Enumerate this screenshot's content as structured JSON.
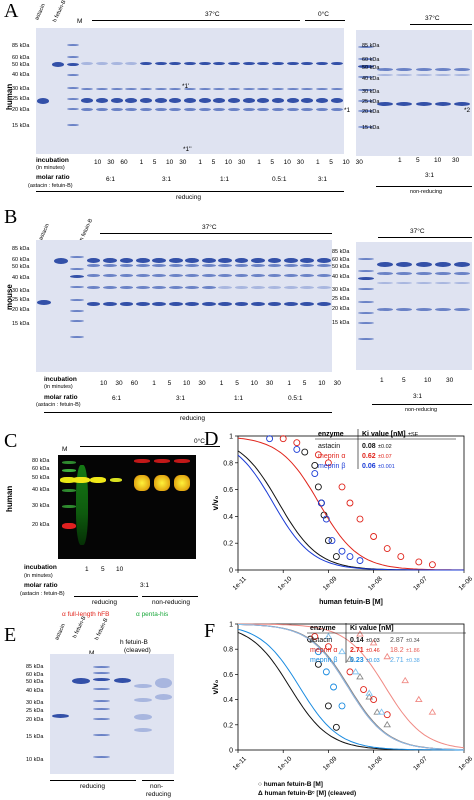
{
  "panels": {
    "A": "A",
    "B": "B",
    "C": "C",
    "D": "D",
    "E": "E",
    "F": "F"
  },
  "species": {
    "human": "human",
    "mouse": "mouse",
    "human_c": "human"
  },
  "lanes": {
    "astacin": "astacin",
    "h_fetuin": "h fetuin-B",
    "m_fetuin": "m fetuin-B",
    "M": "M",
    "h_fetuin_cleaved": "h fetuin-B",
    "cleaved": "(cleaved)"
  },
  "temps": {
    "t37": "37°C",
    "t0": "0°C"
  },
  "markers": {
    "a_left": [
      "85 kDa",
      "60 kDa",
      "50 kDa",
      "40 kDa",
      "30 kDa",
      "25 kDa",
      "20 kDa",
      "15 kDa"
    ],
    "a_right": [
      "85 kDa",
      "60 kDa",
      "50 kDa",
      "40 kDa",
      "30 kDa",
      "25 kDa",
      "20 kDa",
      "15 kDa"
    ],
    "b_left": [
      "85 kDa",
      "60 kDa",
      "50 kDa",
      "40 kDa",
      "30 kDa",
      "25 kDa",
      "20 kDa",
      "15 kDa"
    ],
    "b_right": [
      "85 kDa",
      "60 kDa",
      "50 kDa",
      "40 kDa",
      "30 kDa",
      "25 kDa",
      "20 kDa",
      "15 kDa"
    ],
    "c": [
      "80 kDa",
      "60 kDa",
      "50 kDa",
      "40 kDa",
      "30 kDa",
      "20 kDa"
    ],
    "e": [
      "85 kDa",
      "60 kDa",
      "50 kDa",
      "40 kDa",
      "30 kDa",
      "25 kDa",
      "20 kDa",
      "15 kDa",
      "10 kDa"
    ]
  },
  "cleavage_marks": [
    "*1",
    "*1'",
    "*2",
    "*1''"
  ],
  "incubation": {
    "label": "incubation",
    "sub": "(in minutes)",
    "a_main": [
      "10",
      "30",
      "60",
      "1",
      "5",
      "10",
      "30",
      "1",
      "5",
      "10",
      "30",
      "1",
      "5",
      "10",
      "30",
      "1",
      "5",
      "10",
      "30"
    ],
    "a_right": [
      "1",
      "5",
      "10",
      "30"
    ],
    "b_main": [
      "10",
      "30",
      "60",
      "1",
      "5",
      "10",
      "30",
      "1",
      "5",
      "10",
      "30",
      "1",
      "5",
      "10",
      "30"
    ],
    "b_right": [
      "1",
      "5",
      "10",
      "30"
    ],
    "c": [
      "1",
      "5",
      "10"
    ]
  },
  "molar_ratio": {
    "label": "molar ratio",
    "sub": "(astacin : fetuin-B)",
    "a": [
      "6:1",
      "3:1",
      "1:1",
      "0.5:1",
      "3:1"
    ],
    "a_right": "3:1",
    "b": [
      "6:1",
      "3:1",
      "1:1",
      "0.5:1"
    ],
    "b_right": "3:1",
    "c": "3:1"
  },
  "conditions": {
    "reducing": "reducing",
    "non_reducing": "non-reducing",
    "non": "non-",
    "reducing2": "reducing"
  },
  "legend_c": {
    "alpha_hfb": "α full-length hFB",
    "alpha_his": "α penta-his",
    "red": "#e0251c",
    "green": "#19a83a"
  },
  "chart_data": [
    {
      "type": "scatter",
      "title": "",
      "xlabel": "human fetuin-B [M]",
      "ylabel": "v/v₀",
      "xscale": "log",
      "xlim": [
        1e-11,
        1e-06
      ],
      "ylim": [
        0,
        1
      ],
      "xticks": [
        "1e-11",
        "1e-10",
        "1e-09",
        "1e-08",
        "1e-07",
        "1e-06"
      ],
      "yticks": [
        "0",
        "0.2",
        "0.4",
        "0.6",
        "0.8",
        "1"
      ],
      "grid": false,
      "table": {
        "headers": [
          "enzyme",
          "Ki value [nM]",
          "±SE"
        ],
        "rows": [
          {
            "name": "astacin",
            "value": "0.08",
            "se": "±0.02",
            "color": "#111111"
          },
          {
            "name": "meprin α",
            "value": "0.62",
            "se": "±0.07",
            "color": "#e0251c"
          },
          {
            "name": "meprin β",
            "value": "0.06",
            "se": "±0.001",
            "color": "#1a3bd6"
          }
        ]
      },
      "series": [
        {
          "name": "astacin",
          "color": "#111111",
          "ki": 8e-11,
          "x": [
            3e-10,
            5e-10,
            6e-10,
            7e-10,
            8e-10,
            1e-09,
            1.5e-09
          ],
          "y": [
            0.88,
            0.78,
            0.62,
            0.5,
            0.41,
            0.22,
            0.1
          ]
        },
        {
          "name": "meprin α",
          "color": "#e0251c",
          "ki": 6.2e-10,
          "x": [
            1e-10,
            2e-10,
            6e-10,
            1e-09,
            2e-09,
            3e-09,
            5e-09,
            1e-08,
            2e-08,
            4e-08,
            1e-07,
            2e-07
          ],
          "y": [
            0.98,
            0.95,
            0.86,
            0.8,
            0.62,
            0.5,
            0.38,
            0.25,
            0.16,
            0.1,
            0.06,
            0.04
          ]
        },
        {
          "name": "meprin β",
          "color": "#1a3bd6",
          "ki": 6e-11,
          "x": [
            5e-11,
            2e-10,
            5e-10,
            7e-10,
            9e-10,
            1.2e-09,
            2e-09,
            3e-09,
            5e-09
          ],
          "y": [
            0.98,
            0.9,
            0.72,
            0.5,
            0.38,
            0.22,
            0.14,
            0.1,
            0.07
          ]
        }
      ]
    },
    {
      "type": "scatter",
      "title": "",
      "xlabel": "",
      "ylabel": "v/v₀",
      "xscale": "log",
      "xlim": [
        1e-11,
        1e-06
      ],
      "ylim": [
        0,
        1
      ],
      "xticks": [
        "1e-11",
        "1e-10",
        "1e-09",
        "1e-08",
        "1e-07",
        "1e-06"
      ],
      "yticks": [
        "0",
        "0.2",
        "0.4",
        "0.6",
        "0.8",
        "1"
      ],
      "grid": false,
      "legend_lines": [
        "○ human fetuin-B [M]",
        "Δ human fetuin-Bᶜ [M] (cleaved)"
      ],
      "table": {
        "headers": [
          "enzyme",
          "Ki value [nM]"
        ],
        "rows": [
          {
            "name": "astacin",
            "value": "0.14",
            "se": "±0.03",
            "value2": "2.87",
            "se2": "±0.34",
            "color": "#111111"
          },
          {
            "name": "meprin α",
            "value": "2.71",
            "se": "±0.46",
            "value2": "18.2",
            "se2": "±1.86",
            "color": "#e0251c"
          },
          {
            "name": "meprin β",
            "value": "0.23",
            "se": "±0.03",
            "value2": "2.71",
            "se2": "±0.38",
            "color": "#1a8be0"
          }
        ]
      },
      "series": [
        {
          "name": "astacin",
          "marker": "circle",
          "color": "#111111",
          "ki": 1.4e-10,
          "x": [
            4e-10,
            6e-10,
            1e-09,
            1.5e-09
          ],
          "y": [
            0.88,
            0.68,
            0.35,
            0.18
          ]
        },
        {
          "name": "astacin (cleaved)",
          "marker": "triangle",
          "color": "#888888",
          "ki": 2.87e-09,
          "x": [
            3e-09,
            5e-09,
            8e-09,
            1.2e-08,
            2e-08
          ],
          "y": [
            0.72,
            0.58,
            0.42,
            0.3,
            0.2
          ]
        },
        {
          "name": "meprin α",
          "marker": "circle",
          "color": "#e0251c",
          "ki": 2.71e-09,
          "x": [
            5e-10,
            1e-09,
            3e-09,
            6e-09,
            1e-08,
            2e-08
          ],
          "y": [
            0.9,
            0.82,
            0.62,
            0.48,
            0.4,
            0.28
          ]
        },
        {
          "name": "meprin α (cleaved)",
          "marker": "triangle",
          "color": "#f08a84",
          "ki": 1.82e-08,
          "x": [
            5e-09,
            1e-08,
            2e-08,
            5e-08,
            1e-07,
            2e-07
          ],
          "y": [
            0.92,
            0.85,
            0.74,
            0.55,
            0.4,
            0.3
          ]
        },
        {
          "name": "meprin β",
          "marker": "circle",
          "color": "#1a8be0",
          "ki": 2.3e-10,
          "x": [
            6e-10,
            9e-10,
            1.3e-09,
            2e-09
          ],
          "y": [
            0.78,
            0.62,
            0.5,
            0.35
          ]
        },
        {
          "name": "meprin β (cleaved)",
          "marker": "triangle",
          "color": "#82c3f0",
          "ki": 2.71e-09,
          "x": [
            1e-09,
            2e-09,
            4e-09,
            8e-09,
            1.5e-08
          ],
          "y": [
            0.9,
            0.78,
            0.62,
            0.45,
            0.3
          ]
        }
      ]
    }
  ]
}
